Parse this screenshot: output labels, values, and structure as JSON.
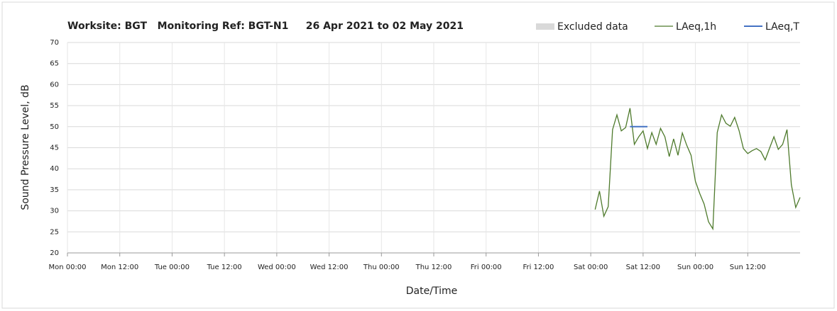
{
  "chart_data": {
    "type": "line",
    "title": "Worksite: BGT   Monitoring Ref: BGT-N1     26 Apr 2021 to 02 May 2021",
    "x_label": "Date/Time",
    "y_label": "Sound Pressure Level, dB",
    "xlim": [
      0,
      168
    ],
    "ylim": [
      20,
      70
    ],
    "yticks": [
      20,
      25,
      30,
      35,
      40,
      45,
      50,
      55,
      60,
      65,
      70
    ],
    "xticks": [
      {
        "value": 0,
        "label": "Mon 00:00"
      },
      {
        "value": 12,
        "label": "Mon 12:00"
      },
      {
        "value": 24,
        "label": "Tue 00:00"
      },
      {
        "value": 36,
        "label": "Tue 12:00"
      },
      {
        "value": 48,
        "label": "Wed 00:00"
      },
      {
        "value": 60,
        "label": "Wed 12:00"
      },
      {
        "value": 72,
        "label": "Thu 00:00"
      },
      {
        "value": 84,
        "label": "Thu 12:00"
      },
      {
        "value": 96,
        "label": "Fri 00:00"
      },
      {
        "value": 108,
        "label": "Fri 12:00"
      },
      {
        "value": 120,
        "label": "Sat 00:00"
      },
      {
        "value": 132,
        "label": "Sat 12:00"
      },
      {
        "value": 144,
        "label": "Sun 00:00"
      },
      {
        "value": 156,
        "label": "Sun 12:00"
      }
    ],
    "grid": true,
    "series": [
      {
        "name": "Excluded data",
        "color": "#d9d9d9",
        "x": [],
        "values": []
      },
      {
        "name": "LAeq,1h",
        "color": "#4e7a2c",
        "x": [
          121,
          122,
          123,
          124,
          125,
          126,
          127,
          128,
          129,
          130,
          131,
          132,
          133,
          134,
          135,
          136,
          137,
          138,
          139,
          140,
          141,
          142,
          143,
          144,
          145,
          146,
          147,
          148,
          149,
          150,
          151,
          152,
          153,
          154,
          155,
          156,
          157,
          158,
          159,
          160,
          161,
          162,
          163,
          164,
          165,
          166,
          167,
          168
        ],
        "values": [
          30.3,
          34.7,
          28.7,
          31,
          49.3,
          52.8,
          49,
          49.8,
          54.4,
          45.8,
          47.6,
          49,
          44.8,
          48.6,
          45.8,
          49.6,
          47.6,
          42.9,
          47.1,
          43.2,
          48.5,
          45.6,
          43.2,
          37,
          34.1,
          31.6,
          27.4,
          25.7,
          48.6,
          52.8,
          50.8,
          50.1,
          52.2,
          49.1,
          44.8,
          43.6,
          44.3,
          44.8,
          44.1,
          42.1,
          44.9,
          47.6,
          44.6,
          45.8,
          49.3,
          36.2,
          30.8,
          33.2
        ]
      },
      {
        "name": "LAeq,T",
        "color": "#4472c4",
        "x": [
          129,
          133
        ],
        "values": [
          50,
          50
        ]
      }
    ]
  }
}
